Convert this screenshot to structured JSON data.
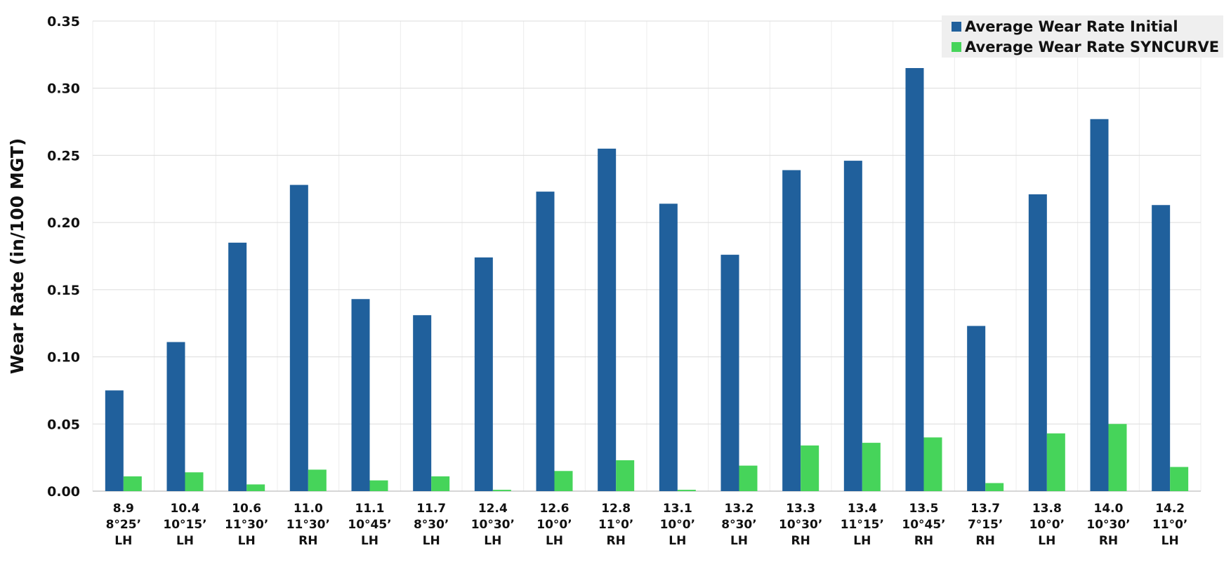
{
  "chart_data": {
    "type": "bar",
    "title": "",
    "xlabel": "",
    "ylabel": "Wear Rate (in/100 MGT)",
    "ylim": [
      0,
      0.35
    ],
    "yticks": [
      "0.00",
      "0.05",
      "0.10",
      "0.15",
      "0.20",
      "0.25",
      "0.30",
      "0.35"
    ],
    "grid": true,
    "legend_position": "top-right",
    "categories": [
      [
        "8.9",
        "8°25’",
        "LH"
      ],
      [
        "10.4",
        "10°15’",
        "LH"
      ],
      [
        "10.6",
        "11°30’",
        "LH"
      ],
      [
        "11.0",
        "11°30’",
        "RH"
      ],
      [
        "11.1",
        "10°45’",
        "LH"
      ],
      [
        "11.7",
        "8°30’",
        "LH"
      ],
      [
        "12.4",
        "10°30’",
        "LH"
      ],
      [
        "12.6",
        "10°0’",
        "LH"
      ],
      [
        "12.8",
        "11°0’",
        "RH"
      ],
      [
        "13.1",
        "10°0’",
        "LH"
      ],
      [
        "13.2",
        "8°30’",
        "LH"
      ],
      [
        "13.3",
        "10°30’",
        "RH"
      ],
      [
        "13.4",
        "11°15’",
        "LH"
      ],
      [
        "13.5",
        "10°45’",
        "RH"
      ],
      [
        "13.7",
        "7°15’",
        "RH"
      ],
      [
        "13.8",
        "10°0’",
        "LH"
      ],
      [
        "14.0",
        "10°30’",
        "RH"
      ],
      [
        "14.2",
        "11°0’",
        "LH"
      ]
    ],
    "series": [
      {
        "name": "Average Wear Rate Initial",
        "color": "#20609c",
        "values": [
          0.075,
          0.111,
          0.185,
          0.228,
          0.143,
          0.131,
          0.174,
          0.223,
          0.255,
          0.214,
          0.176,
          0.239,
          0.246,
          0.315,
          0.123,
          0.221,
          0.277,
          0.213
        ]
      },
      {
        "name": "Average Wear Rate SYNCURVE",
        "color": "#46d45a",
        "values": [
          0.011,
          0.014,
          0.005,
          0.016,
          0.008,
          0.011,
          0.001,
          0.015,
          0.023,
          0.001,
          0.019,
          0.034,
          0.036,
          0.04,
          0.006,
          0.043,
          0.05,
          0.018
        ]
      }
    ]
  }
}
